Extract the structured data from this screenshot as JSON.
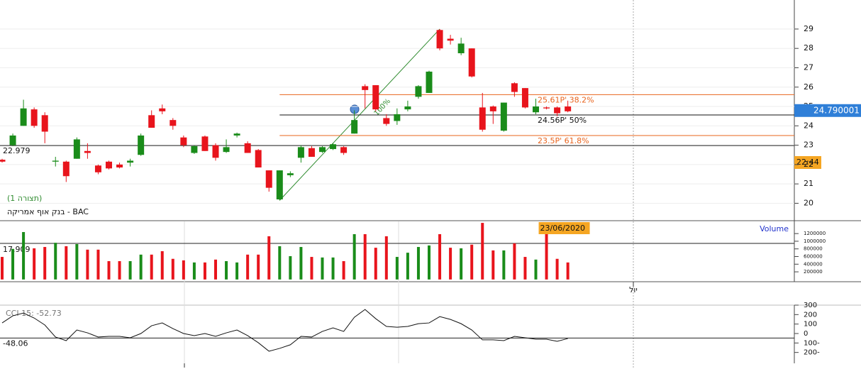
{
  "chart_data": [
    {
      "type": "candlestick",
      "title": "בנק אוף אמריקה - BAC",
      "subtitle": "(תצורה 1)",
      "up_color": "#1a8c1a",
      "down_color": "#e8141c",
      "open": [
        22.25,
        23.0,
        24.0,
        24.85,
        24.55,
        22.15,
        22.15,
        22.3,
        22.7,
        21.95,
        22.15,
        22.0,
        22.1,
        22.5,
        24.55,
        24.9,
        24.3,
        23.4,
        22.6,
        23.45,
        23.0,
        22.65,
        23.5,
        23.1,
        22.75,
        21.7,
        20.2,
        21.45,
        22.35,
        22.85,
        22.65,
        22.8,
        22.9,
        23.6,
        26.05,
        26.1,
        24.4,
        24.25,
        24.85,
        25.5,
        25.7,
        28.95,
        28.5,
        27.75,
        28.0,
        24.95,
        25.0,
        23.75,
        26.2,
        25.95,
        24.7,
        24.95,
        24.95,
        25.0
      ],
      "high": [
        22.3,
        23.6,
        25.35,
        24.95,
        24.7,
        22.4,
        22.2,
        23.4,
        23.1,
        22.0,
        22.2,
        22.1,
        22.3,
        23.6,
        24.8,
        25.1,
        24.4,
        23.5,
        23.0,
        23.5,
        23.1,
        23.3,
        23.65,
        23.2,
        22.8,
        21.7,
        21.7,
        21.65,
        23.0,
        22.95,
        22.95,
        23.1,
        22.95,
        24.8,
        26.15,
        26.1,
        24.6,
        24.9,
        25.3,
        26.1,
        26.85,
        29.0,
        28.7,
        28.55,
        28.0,
        25.7,
        25.05,
        25.2,
        26.25,
        25.95,
        25.4,
        25.0,
        25.0,
        25.3
      ],
      "low": [
        22.1,
        22.95,
        24.0,
        23.9,
        23.1,
        21.9,
        21.1,
        22.3,
        22.3,
        21.5,
        21.75,
        21.8,
        21.9,
        22.45,
        23.9,
        24.6,
        23.8,
        22.9,
        22.55,
        22.7,
        22.2,
        22.6,
        23.4,
        22.6,
        21.85,
        20.6,
        20.15,
        21.35,
        22.1,
        22.4,
        22.6,
        22.75,
        22.5,
        23.6,
        24.9,
        24.75,
        24.0,
        24.05,
        24.75,
        25.4,
        25.7,
        27.9,
        28.2,
        27.65,
        26.5,
        23.7,
        24.1,
        23.7,
        25.5,
        24.9,
        24.6,
        24.85,
        24.5,
        24.7
      ],
      "close": [
        22.15,
        23.5,
        24.9,
        24.0,
        23.7,
        22.2,
        21.4,
        23.3,
        22.6,
        21.6,
        21.8,
        21.85,
        22.2,
        23.5,
        23.9,
        24.75,
        24.0,
        23.0,
        22.95,
        22.7,
        22.35,
        22.9,
        23.6,
        22.6,
        21.85,
        20.8,
        21.7,
        21.55,
        22.9,
        22.4,
        22.9,
        23.05,
        22.6,
        24.3,
        25.85,
        24.85,
        24.1,
        24.6,
        25.0,
        26.05,
        26.8,
        28.0,
        28.4,
        28.25,
        26.55,
        23.8,
        24.75,
        25.2,
        25.75,
        24.95,
        25.0,
        24.9,
        24.65,
        24.75
      ],
      "ylim": [
        19.1,
        30.5
      ],
      "yticks": [
        20,
        21,
        22,
        23,
        24,
        25,
        26,
        27,
        28,
        29
      ],
      "grid": true,
      "ref_line": {
        "value": 22.979,
        "label": "22.979"
      },
      "last_price": {
        "value": 24.790001,
        "label": "24.790001"
      },
      "time_label": "22:44",
      "fib_color": "#e8641e",
      "fib_levels": [
        {
          "value": 25.61,
          "label": "25.61P' 38.2%"
        },
        {
          "value": 24.56,
          "label": "24.56P' 50%"
        },
        {
          "value": 23.5,
          "label": "23.5P' 61.8%"
        }
      ],
      "trend_line": {
        "x": [
          26,
          41
        ],
        "values": [
          20.15,
          29.0
        ],
        "label": "100%",
        "color": "#2e8b2e"
      }
    },
    {
      "type": "bar",
      "title": "Volume",
      "categories": [
        null,
        null,
        null,
        null,
        null,
        null,
        null,
        null,
        null,
        null,
        null,
        null,
        null,
        null,
        null,
        null,
        null,
        null,
        null,
        null,
        null,
        null,
        null,
        null,
        null,
        null,
        null,
        null,
        null,
        null,
        null,
        null,
        null,
        null,
        null,
        null,
        null,
        null,
        null,
        null,
        null,
        null,
        null,
        null,
        null,
        null,
        null,
        null,
        null,
        null,
        null,
        "23/06/2020",
        null,
        null
      ],
      "values": [
        590000,
        800000,
        1240000,
        815000,
        850000,
        960000,
        870000,
        925000,
        780000,
        780000,
        480000,
        480000,
        480000,
        650000,
        650000,
        740000,
        540000,
        500000,
        445000,
        445000,
        520000,
        480000,
        445000,
        650000,
        650000,
        1130000,
        870000,
        610000,
        850000,
        590000,
        575000,
        575000,
        480000,
        1185000,
        1185000,
        830000,
        1130000,
        590000,
        700000,
        850000,
        890000,
        1185000,
        830000,
        815000,
        910000,
        1480000,
        760000,
        760000,
        945000,
        590000,
        520000,
        1260000,
        540000,
        445000
      ],
      "ylim": [
        -40000,
        1500000
      ],
      "yticks": [
        200000,
        400000,
        600000,
        800000,
        1000000,
        1200000
      ],
      "grid": false,
      "ref_label": "17.909",
      "month_label": "יול"
    },
    {
      "type": "line",
      "title": "CCI 15: -52.73",
      "color": "#111111",
      "values": [
        112,
        187,
        216,
        164,
        90,
        -37,
        -75,
        37,
        7,
        -37,
        -30,
        -30,
        -45,
        0,
        82,
        112,
        52,
        0,
        -22,
        0,
        -30,
        7,
        37,
        -22,
        -97,
        -187,
        -157,
        -119,
        -30,
        -37,
        22,
        60,
        22,
        172,
        254,
        157,
        75,
        67,
        75,
        104,
        112,
        179,
        149,
        104,
        37,
        -67,
        -67,
        -75,
        -30,
        -45,
        -60,
        -60,
        -82,
        -53
      ],
      "ylim": [
        -300,
        300
      ],
      "yticks": [
        300,
        200,
        100,
        0,
        {
          "value": -100,
          "label": "100-"
        },
        {
          "value": -200,
          "label": "200-"
        }
      ],
      "grid": false,
      "ref_line": {
        "value": -48.06,
        "label": "-48.06"
      }
    }
  ]
}
